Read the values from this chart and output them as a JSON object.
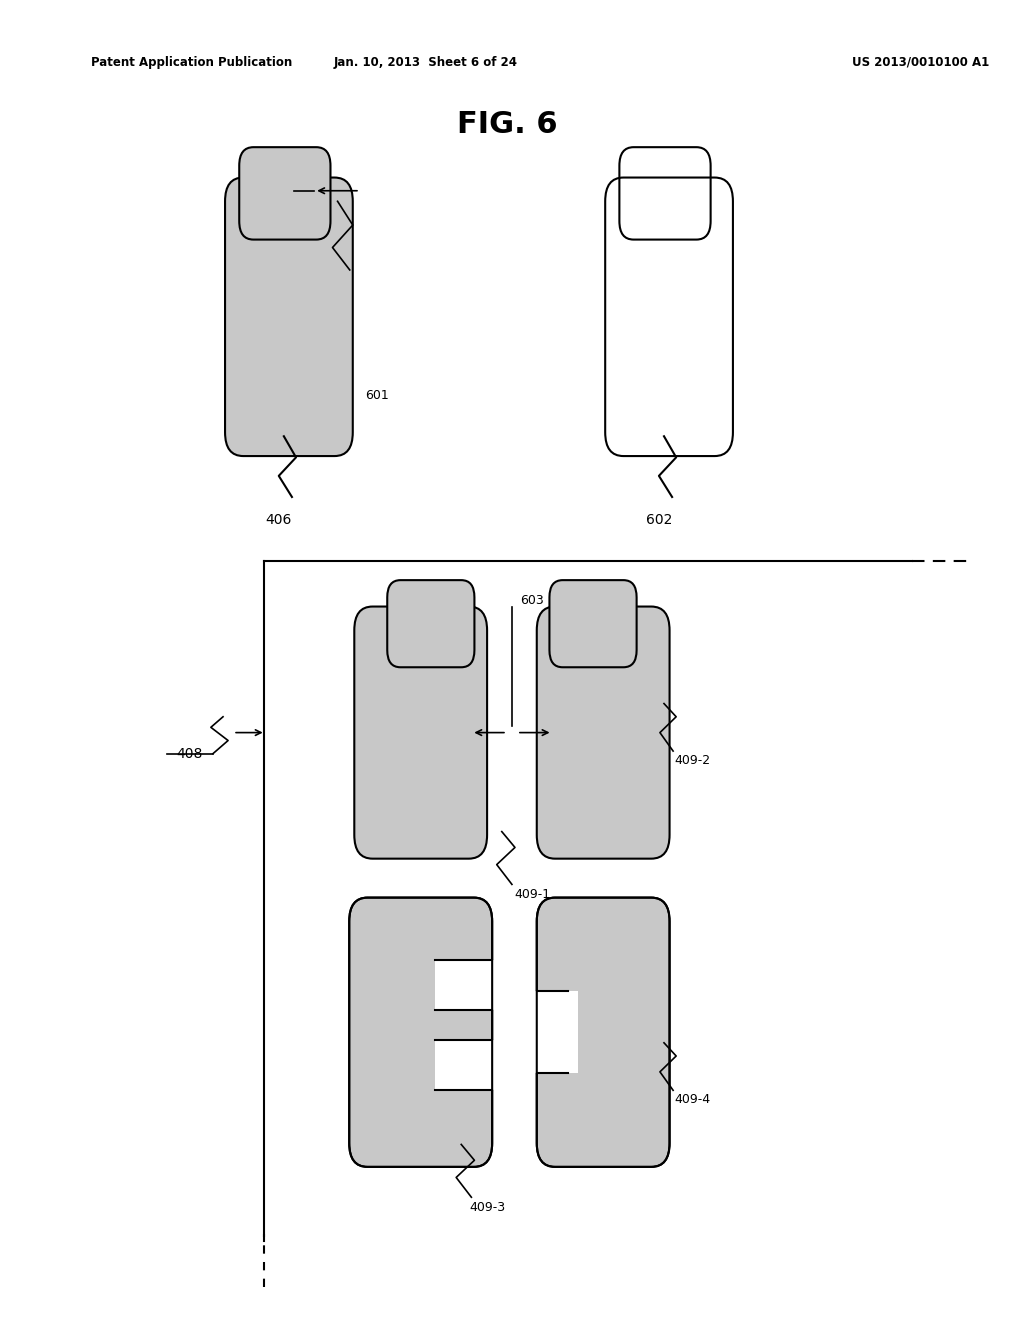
{
  "title": "FIG. 6",
  "header_left": "Patent Application Publication",
  "header_center": "Jan. 10, 2013  Sheet 6 of 24",
  "header_right": "US 2013/0010100 A1",
  "bg_color": "#ffffff",
  "fill_color": "#c8c8c8",
  "outline_color": "#000000"
}
